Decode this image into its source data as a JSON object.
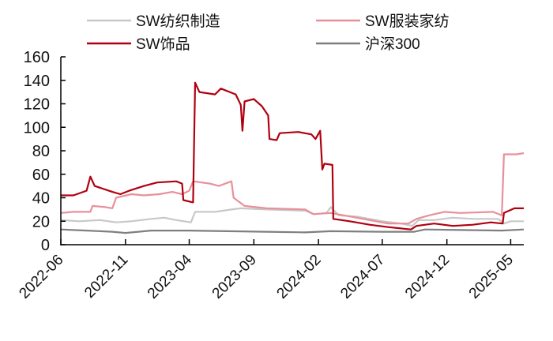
{
  "chart_data": {
    "type": "line",
    "title": "",
    "xlabel": "",
    "ylabel": "",
    "ylim": [
      0,
      160
    ],
    "yticks": [
      "0",
      "20",
      "40",
      "60",
      "80",
      "100",
      "120",
      "140",
      "160"
    ],
    "xlim": [
      "2022-06-01",
      "2025-06-01"
    ],
    "xticks": [
      "2022-06",
      "2022-11",
      "2023-04",
      "2023-09",
      "2024-02",
      "2024-07",
      "2024-12",
      "2025-05"
    ],
    "grid": false,
    "legend_position": "top",
    "series": [
      {
        "name": "SW纺织制造",
        "color": "#c8c8c8",
        "points": [
          [
            "2022-06-01",
            21
          ],
          [
            "2022-07-15",
            20
          ],
          [
            "2022-09-01",
            21
          ],
          [
            "2022-10-10",
            19
          ],
          [
            "2022-11-15",
            20
          ],
          [
            "2023-01-01",
            22
          ],
          [
            "2023-02-01",
            23
          ],
          [
            "2023-03-01",
            21
          ],
          [
            "2023-04-05",
            19
          ],
          [
            "2023-04-15",
            28
          ],
          [
            "2023-06-01",
            28
          ],
          [
            "2023-07-10",
            30
          ],
          [
            "2023-08-01",
            31
          ],
          [
            "2023-10-01",
            30
          ],
          [
            "2024-01-01",
            29
          ],
          [
            "2024-01-20",
            26
          ],
          [
            "2024-02-20",
            27
          ],
          [
            "2024-03-01",
            32
          ],
          [
            "2024-03-20",
            25
          ],
          [
            "2024-05-01",
            24
          ],
          [
            "2024-07-01",
            20
          ],
          [
            "2024-08-15",
            18
          ],
          [
            "2024-09-10",
            16
          ],
          [
            "2024-09-25",
            21
          ],
          [
            "2024-11-01",
            21
          ],
          [
            "2024-12-15",
            23
          ],
          [
            "2025-02-01",
            22
          ],
          [
            "2025-04-01",
            22
          ],
          [
            "2025-04-15",
            18
          ],
          [
            "2025-05-01",
            20
          ],
          [
            "2025-06-01",
            20
          ]
        ]
      },
      {
        "name": "SW服装家纺",
        "color": "#e8909a",
        "points": [
          [
            "2022-06-01",
            27
          ],
          [
            "2022-07-01",
            28
          ],
          [
            "2022-08-10",
            28
          ],
          [
            "2022-08-15",
            33
          ],
          [
            "2022-09-15",
            32
          ],
          [
            "2022-10-01",
            31
          ],
          [
            "2022-10-10",
            40
          ],
          [
            "2022-11-15",
            43
          ],
          [
            "2022-12-15",
            42
          ],
          [
            "2023-01-20",
            43
          ],
          [
            "2023-02-20",
            45
          ],
          [
            "2023-03-15",
            43
          ],
          [
            "2023-04-01",
            46
          ],
          [
            "2023-04-10",
            54
          ],
          [
            "2023-05-20",
            52
          ],
          [
            "2023-06-10",
            50
          ],
          [
            "2023-07-10",
            54
          ],
          [
            "2023-07-15",
            40
          ],
          [
            "2023-08-10",
            33
          ],
          [
            "2023-10-01",
            31
          ],
          [
            "2024-01-01",
            30
          ],
          [
            "2024-01-20",
            26
          ],
          [
            "2024-03-01",
            27
          ],
          [
            "2024-04-01",
            25
          ],
          [
            "2024-06-01",
            21
          ],
          [
            "2024-07-15",
            18
          ],
          [
            "2024-09-01",
            18
          ],
          [
            "2024-09-20",
            22
          ],
          [
            "2024-10-20",
            25
          ],
          [
            "2024-11-25",
            28
          ],
          [
            "2025-01-01",
            27
          ],
          [
            "2025-03-20",
            28
          ],
          [
            "2025-04-10",
            25
          ],
          [
            "2025-04-15",
            77
          ],
          [
            "2025-05-15",
            77
          ],
          [
            "2025-06-01",
            78
          ]
        ]
      },
      {
        "name": "SW饰品",
        "color": "#b00010",
        "points": [
          [
            "2022-06-01",
            42
          ],
          [
            "2022-07-01",
            42
          ],
          [
            "2022-08-01",
            46
          ],
          [
            "2022-08-10",
            58
          ],
          [
            "2022-08-20",
            50
          ],
          [
            "2022-10-01",
            45
          ],
          [
            "2022-10-20",
            43
          ],
          [
            "2022-11-10",
            46
          ],
          [
            "2022-12-15",
            50
          ],
          [
            "2023-01-15",
            53
          ],
          [
            "2023-03-01",
            54
          ],
          [
            "2023-03-15",
            52
          ],
          [
            "2023-03-18",
            38
          ],
          [
            "2023-04-10",
            36
          ],
          [
            "2023-04-15",
            138
          ],
          [
            "2023-04-25",
            130
          ],
          [
            "2023-06-01",
            128
          ],
          [
            "2023-06-15",
            133
          ],
          [
            "2023-07-20",
            128
          ],
          [
            "2023-08-01",
            119
          ],
          [
            "2023-08-05",
            97
          ],
          [
            "2023-08-10",
            122
          ],
          [
            "2023-09-01",
            124
          ],
          [
            "2023-09-20",
            118
          ],
          [
            "2023-10-05",
            110
          ],
          [
            "2023-10-08",
            90
          ],
          [
            "2023-10-25",
            89
          ],
          [
            "2023-11-01",
            95
          ],
          [
            "2023-12-15",
            96
          ],
          [
            "2024-01-15",
            94
          ],
          [
            "2024-01-25",
            90
          ],
          [
            "2024-02-05",
            97
          ],
          [
            "2024-02-10",
            64
          ],
          [
            "2024-02-15",
            69
          ],
          [
            "2024-03-05",
            68
          ],
          [
            "2024-03-07",
            22
          ],
          [
            "2024-04-15",
            20
          ],
          [
            "2024-06-01",
            17
          ],
          [
            "2024-07-15",
            15
          ],
          [
            "2024-09-07",
            13
          ],
          [
            "2024-09-20",
            16
          ],
          [
            "2024-11-01",
            18
          ],
          [
            "2024-12-15",
            16
          ],
          [
            "2025-02-01",
            17
          ],
          [
            "2025-03-15",
            19
          ],
          [
            "2025-04-12",
            18
          ],
          [
            "2025-04-15",
            27
          ],
          [
            "2025-05-10",
            31
          ],
          [
            "2025-06-01",
            31
          ]
        ]
      },
      {
        "name": "沪深300",
        "color": "#7f7f7f",
        "points": [
          [
            "2022-06-01",
            13
          ],
          [
            "2022-08-01",
            12
          ],
          [
            "2022-10-01",
            11
          ],
          [
            "2022-11-01",
            10
          ],
          [
            "2023-01-01",
            12
          ],
          [
            "2023-04-01",
            12
          ],
          [
            "2023-07-01",
            11.5
          ],
          [
            "2023-10-01",
            11
          ],
          [
            "2024-01-01",
            10.5
          ],
          [
            "2024-03-01",
            11.5
          ],
          [
            "2024-07-01",
            11
          ],
          [
            "2024-09-15",
            11
          ],
          [
            "2024-10-10",
            13
          ],
          [
            "2025-01-01",
            12.5
          ],
          [
            "2025-04-10",
            12
          ],
          [
            "2025-06-01",
            13
          ]
        ]
      }
    ]
  }
}
